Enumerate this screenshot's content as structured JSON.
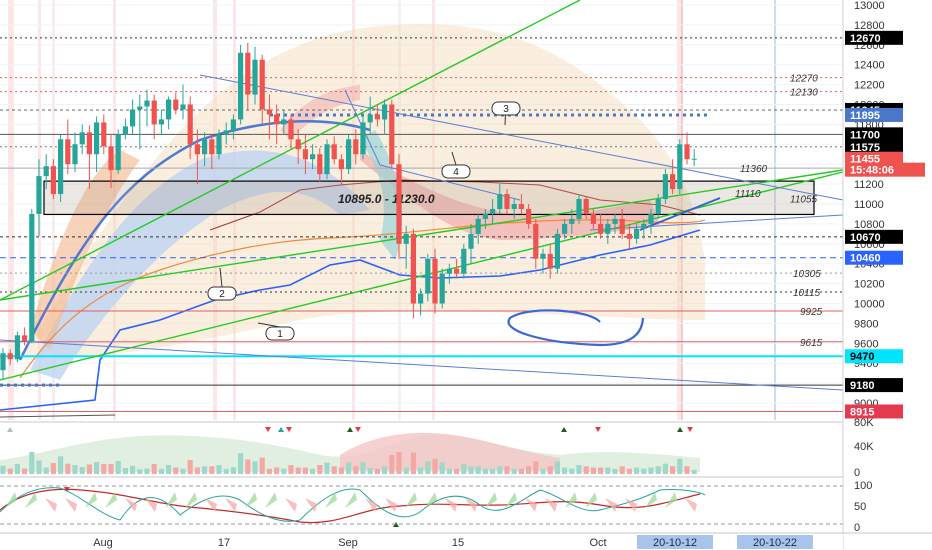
{
  "chart_data": {
    "type": "candlestick",
    "title": "",
    "price_axis": {
      "ylim": [
        8850,
        13050
      ],
      "ticks": [
        13000,
        12800,
        12600,
        12400,
        12200,
        12000,
        11800,
        11600,
        11400,
        11200,
        11000,
        10800,
        10600,
        10400,
        10200,
        10000,
        9800,
        9600,
        9400,
        9200,
        9000
      ]
    },
    "x_axis": {
      "labels": [
        "Aug",
        "17",
        "Sep",
        "15",
        "Oct"
      ],
      "highlighted": [
        "20-10-12",
        "20-10-22"
      ]
    },
    "candles": [
      {
        "o": 9330,
        "h": 9550,
        "l": 9240,
        "c": 9500
      },
      {
        "o": 9500,
        "h": 9540,
        "l": 9380,
        "c": 9440
      },
      {
        "o": 9440,
        "h": 9720,
        "l": 9410,
        "c": 9680
      },
      {
        "o": 9680,
        "h": 9760,
        "l": 9580,
        "c": 9620
      },
      {
        "o": 9620,
        "h": 10950,
        "l": 9600,
        "c": 10900
      },
      {
        "o": 10900,
        "h": 11450,
        "l": 10680,
        "c": 11280
      },
      {
        "o": 11280,
        "h": 11500,
        "l": 11150,
        "c": 11380
      },
      {
        "o": 11380,
        "h": 11450,
        "l": 11050,
        "c": 11100
      },
      {
        "o": 11100,
        "h": 11700,
        "l": 11020,
        "c": 11650
      },
      {
        "o": 11650,
        "h": 11850,
        "l": 11300,
        "c": 11400
      },
      {
        "o": 11400,
        "h": 11720,
        "l": 11320,
        "c": 11600
      },
      {
        "o": 11600,
        "h": 11800,
        "l": 11500,
        "c": 11720
      },
      {
        "o": 11720,
        "h": 11790,
        "l": 11150,
        "c": 11500
      },
      {
        "o": 11500,
        "h": 11880,
        "l": 11320,
        "c": 11820
      },
      {
        "o": 11820,
        "h": 11900,
        "l": 11500,
        "c": 11580
      },
      {
        "o": 11580,
        "h": 11700,
        "l": 11160,
        "c": 11340
      },
      {
        "o": 11340,
        "h": 11750,
        "l": 11300,
        "c": 11700
      },
      {
        "o": 11700,
        "h": 11860,
        "l": 11650,
        "c": 11780
      },
      {
        "o": 11780,
        "h": 12050,
        "l": 11700,
        "c": 11950
      },
      {
        "o": 11950,
        "h": 12100,
        "l": 11550,
        "c": 11980
      },
      {
        "o": 11980,
        "h": 12150,
        "l": 11780,
        "c": 12040
      },
      {
        "o": 12040,
        "h": 12100,
        "l": 11650,
        "c": 11800
      },
      {
        "o": 11800,
        "h": 11950,
        "l": 11700,
        "c": 11850
      },
      {
        "o": 11850,
        "h": 12080,
        "l": 11750,
        "c": 12050
      },
      {
        "o": 12050,
        "h": 12120,
        "l": 11900,
        "c": 11950
      },
      {
        "o": 11950,
        "h": 12200,
        "l": 11850,
        "c": 12000
      },
      {
        "o": 12000,
        "h": 12080,
        "l": 11450,
        "c": 11600
      },
      {
        "o": 11600,
        "h": 11750,
        "l": 11200,
        "c": 11500
      },
      {
        "o": 11500,
        "h": 11720,
        "l": 11380,
        "c": 11650
      },
      {
        "o": 11650,
        "h": 11700,
        "l": 11350,
        "c": 11500
      },
      {
        "o": 11500,
        "h": 11750,
        "l": 11450,
        "c": 11700
      },
      {
        "o": 11700,
        "h": 11820,
        "l": 11600,
        "c": 11740
      },
      {
        "o": 11740,
        "h": 11900,
        "l": 11650,
        "c": 11850
      },
      {
        "o": 11850,
        "h": 12600,
        "l": 11800,
        "c": 12520
      },
      {
        "o": 12520,
        "h": 12620,
        "l": 11950,
        "c": 12100
      },
      {
        "o": 12100,
        "h": 12580,
        "l": 12000,
        "c": 12450
      },
      {
        "o": 12450,
        "h": 12500,
        "l": 11800,
        "c": 11950
      },
      {
        "o": 11950,
        "h": 12100,
        "l": 11650,
        "c": 11900
      },
      {
        "o": 11900,
        "h": 12000,
        "l": 11600,
        "c": 11800
      },
      {
        "o": 11800,
        "h": 11950,
        "l": 11700,
        "c": 11850
      },
      {
        "o": 11850,
        "h": 11900,
        "l": 11550,
        "c": 11650
      },
      {
        "o": 11650,
        "h": 11750,
        "l": 11400,
        "c": 11550
      },
      {
        "o": 11550,
        "h": 11700,
        "l": 11300,
        "c": 11450
      },
      {
        "o": 11450,
        "h": 11600,
        "l": 11350,
        "c": 11500
      },
      {
        "o": 11500,
        "h": 11560,
        "l": 11220,
        "c": 11300
      },
      {
        "o": 11300,
        "h": 11650,
        "l": 11250,
        "c": 11600
      },
      {
        "o": 11600,
        "h": 11680,
        "l": 11400,
        "c": 11450
      },
      {
        "o": 11450,
        "h": 11500,
        "l": 11200,
        "c": 11350
      },
      {
        "o": 11350,
        "h": 11700,
        "l": 11300,
        "c": 11650
      },
      {
        "o": 11650,
        "h": 11750,
        "l": 11400,
        "c": 11500
      },
      {
        "o": 11500,
        "h": 11900,
        "l": 11450,
        "c": 11820
      },
      {
        "o": 11820,
        "h": 12080,
        "l": 11700,
        "c": 11900
      },
      {
        "o": 11900,
        "h": 12000,
        "l": 11780,
        "c": 11850
      },
      {
        "o": 11850,
        "h": 12050,
        "l": 11700,
        "c": 12000
      },
      {
        "o": 12000,
        "h": 12050,
        "l": 11350,
        "c": 11400
      },
      {
        "o": 11400,
        "h": 11500,
        "l": 10450,
        "c": 10600
      },
      {
        "o": 10600,
        "h": 10780,
        "l": 10350,
        "c": 10700
      },
      {
        "o": 10700,
        "h": 10750,
        "l": 9850,
        "c": 10000
      },
      {
        "o": 10000,
        "h": 10150,
        "l": 9880,
        "c": 10100
      },
      {
        "o": 10100,
        "h": 10500,
        "l": 10020,
        "c": 10450
      },
      {
        "o": 10450,
        "h": 10550,
        "l": 9900,
        "c": 10000
      },
      {
        "o": 10000,
        "h": 10350,
        "l": 9950,
        "c": 10300
      },
      {
        "o": 10300,
        "h": 10400,
        "l": 10200,
        "c": 10350
      },
      {
        "o": 10350,
        "h": 10450,
        "l": 10250,
        "c": 10300
      },
      {
        "o": 10300,
        "h": 10600,
        "l": 10250,
        "c": 10550
      },
      {
        "o": 10550,
        "h": 10800,
        "l": 10400,
        "c": 10700
      },
      {
        "o": 10700,
        "h": 10900,
        "l": 10600,
        "c": 10850
      },
      {
        "o": 10850,
        "h": 10950,
        "l": 10750,
        "c": 10900
      },
      {
        "o": 10900,
        "h": 11050,
        "l": 10800,
        "c": 10950
      },
      {
        "o": 10950,
        "h": 11200,
        "l": 10900,
        "c": 11100
      },
      {
        "o": 11100,
        "h": 11150,
        "l": 10900,
        "c": 10950
      },
      {
        "o": 10950,
        "h": 11050,
        "l": 10850,
        "c": 11000
      },
      {
        "o": 11000,
        "h": 11100,
        "l": 10900,
        "c": 10950
      },
      {
        "o": 10950,
        "h": 11000,
        "l": 10750,
        "c": 10800
      },
      {
        "o": 10800,
        "h": 10850,
        "l": 10350,
        "c": 10450
      },
      {
        "o": 10450,
        "h": 10550,
        "l": 10300,
        "c": 10500
      },
      {
        "o": 10500,
        "h": 10600,
        "l": 10250,
        "c": 10350
      },
      {
        "o": 10350,
        "h": 10750,
        "l": 10300,
        "c": 10700
      },
      {
        "o": 10700,
        "h": 10850,
        "l": 10650,
        "c": 10800
      },
      {
        "o": 10800,
        "h": 10950,
        "l": 10700,
        "c": 10850
      },
      {
        "o": 10850,
        "h": 11100,
        "l": 10800,
        "c": 11050
      },
      {
        "o": 11050,
        "h": 11080,
        "l": 10850,
        "c": 10900
      },
      {
        "o": 10900,
        "h": 10950,
        "l": 10750,
        "c": 10800
      },
      {
        "o": 10800,
        "h": 10900,
        "l": 10650,
        "c": 10700
      },
      {
        "o": 10700,
        "h": 10850,
        "l": 10600,
        "c": 10800
      },
      {
        "o": 10800,
        "h": 10900,
        "l": 10700,
        "c": 10850
      },
      {
        "o": 10850,
        "h": 10950,
        "l": 10650,
        "c": 10700
      },
      {
        "o": 10700,
        "h": 10800,
        "l": 10550,
        "c": 10650
      },
      {
        "o": 10650,
        "h": 10800,
        "l": 10600,
        "c": 10750
      },
      {
        "o": 10750,
        "h": 10850,
        "l": 10650,
        "c": 10800
      },
      {
        "o": 10800,
        "h": 10950,
        "l": 10700,
        "c": 10900
      },
      {
        "o": 10900,
        "h": 11100,
        "l": 10850,
        "c": 11050
      },
      {
        "o": 11050,
        "h": 11350,
        "l": 11000,
        "c": 11300
      },
      {
        "o": 11300,
        "h": 11450,
        "l": 11100,
        "c": 11150
      },
      {
        "o": 11150,
        "h": 11650,
        "l": 11100,
        "c": 11600
      },
      {
        "o": 11600,
        "h": 11720,
        "l": 11400,
        "c": 11450
      },
      {
        "o": 11450,
        "h": 11550,
        "l": 11380,
        "c": 11455
      }
    ],
    "price_tags": [
      {
        "value": 12670,
        "label": "12670",
        "bg": "#000000",
        "fg": "#ffffff"
      },
      {
        "value": 11945,
        "label": "11945",
        "bg": "#000000",
        "fg": "#ffffff"
      },
      {
        "value": 11895,
        "label": "11895",
        "bg": "#4a78c8",
        "fg": "#ffffff"
      },
      {
        "value": 11700,
        "label": "11700",
        "bg": "#000000",
        "fg": "#ffffff"
      },
      {
        "value": 11575,
        "label": "11575",
        "bg": "#000000",
        "fg": "#ffffff"
      },
      {
        "value": 11455,
        "label": "11455",
        "bg": "#ef5350",
        "fg": "#ffffff"
      },
      {
        "value": 11345,
        "label": "15:48:06",
        "bg": "#ef5350",
        "fg": "#ffffff"
      },
      {
        "value": 10670,
        "label": "10670",
        "bg": "#000000",
        "fg": "#ffffff"
      },
      {
        "value": 10460,
        "label": "10460",
        "bg": "#2962ff",
        "fg": "#ffffff"
      },
      {
        "value": 9470,
        "label": "9470",
        "bg": "#00e5ff",
        "fg": "#000000"
      },
      {
        "value": 9180,
        "label": "9180",
        "bg": "#000000",
        "fg": "#ffffff"
      },
      {
        "value": 8915,
        "label": "8915",
        "bg": "#e53950",
        "fg": "#ffffff"
      }
    ],
    "level_annotations": [
      {
        "value": 12270,
        "label": "12270"
      },
      {
        "value": 12130,
        "label": "12130"
      },
      {
        "value": 11360,
        "label": "11360"
      },
      {
        "value": 11110,
        "label": "11110"
      },
      {
        "value": 11055,
        "label": "11055"
      },
      {
        "value": 10305,
        "label": "10305"
      },
      {
        "value": 10115,
        "label": "10115"
      },
      {
        "value": 9925,
        "label": "9925"
      },
      {
        "value": 9615,
        "label": "9615"
      }
    ],
    "zone": {
      "label": "10895.0 - 11230.0",
      "low": 10895,
      "high": 11230
    },
    "callouts": [
      "1",
      "2",
      "3",
      "4"
    ],
    "volume_axis": {
      "ticks": [
        "80K",
        "40K",
        "0"
      ]
    },
    "oscillator_axis": {
      "ticks": [
        "100",
        "50",
        "0"
      ]
    }
  }
}
